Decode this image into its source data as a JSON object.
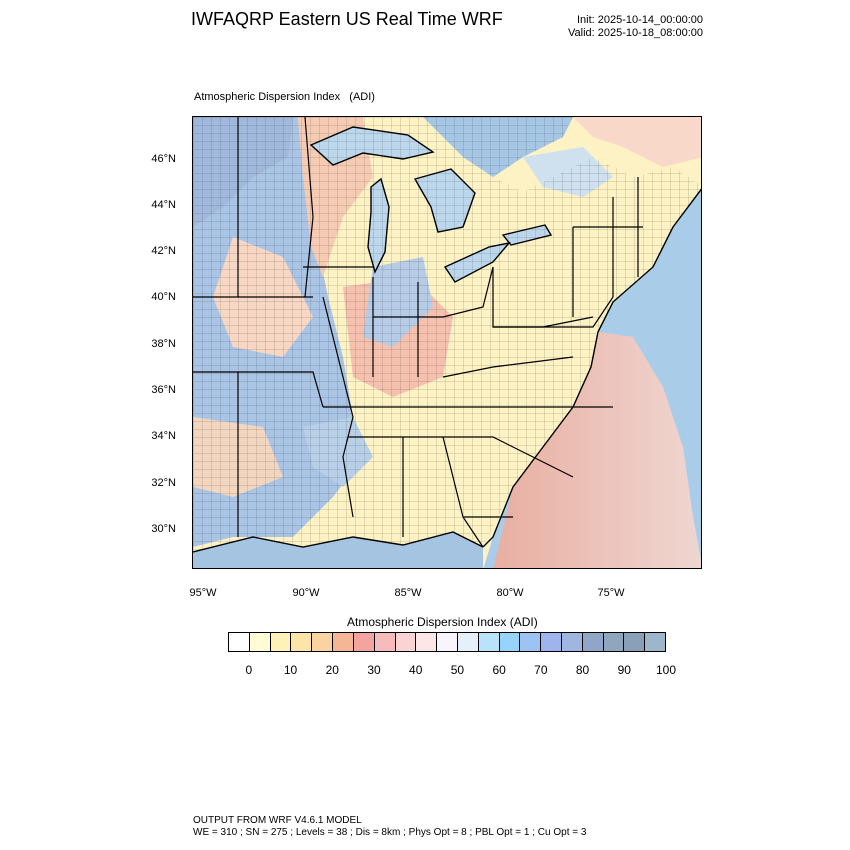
{
  "header": {
    "title": "IWFAQRP Eastern US Real Time WRF",
    "init": "Init: 2025-10-14_00:00:00",
    "valid": "Valid: 2025-10-18_08:00:00"
  },
  "field_title": "Atmospheric Dispersion Index   (ADI)",
  "map": {
    "lat_labels": [
      "46°N",
      "44°N",
      "42°N",
      "40°N",
      "38°N",
      "36°N",
      "34°N",
      "32°N",
      "30°N"
    ],
    "lon_labels": [
      "95°W",
      "90°W",
      "85°W",
      "80°W",
      "75°W"
    ],
    "colors": {
      "land_low": "#fdf5c8",
      "land_mid": "#f9d9b0",
      "land_high": "#f3b9a8",
      "water_low": "#a9cde9",
      "water_high": "#8fb3dd",
      "lake": "#bcd6ec",
      "ocean_plume": "#f6b7a6"
    }
  },
  "colorbar": {
    "title": "Atmospheric Dispersion Index  (ADI)",
    "ticks": [
      "0",
      "10",
      "20",
      "30",
      "40",
      "50",
      "60",
      "70",
      "80",
      "90",
      "100"
    ],
    "colors": [
      "#ffffff",
      "#fffbd2",
      "#fff2b8",
      "#fde4a8",
      "#fad3a1",
      "#f5b696",
      "#f3a4a0",
      "#f6bcbc",
      "#fad4d3",
      "#fce7e6",
      "#f8f5ff",
      "#e6f0fc",
      "#b9e3fb",
      "#97d4fa",
      "#9cc3f1",
      "#9fb4ec",
      "#9eb6e0",
      "#8fa6c8",
      "#8ea7bf",
      "#8a9fb8",
      "#9db6cc"
    ]
  },
  "footer": {
    "line1": "OUTPUT FROM WRF V4.6.1 MODEL",
    "line2": "WE = 310 ; SN = 275 ; Levels = 38 ; Dis = 8km ; Phys Opt = 8 ; PBL Opt = 1 ; Cu Opt = 3"
  }
}
